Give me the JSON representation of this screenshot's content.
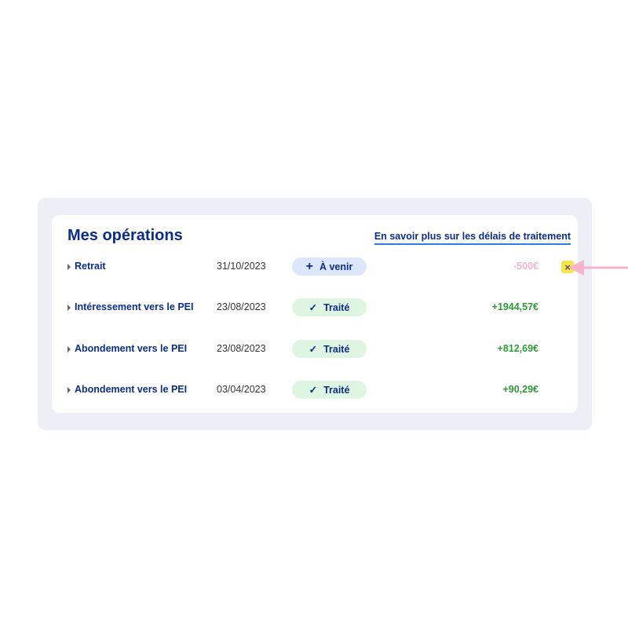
{
  "title": "Mes opérations",
  "info_link": "En savoir plus sur les délais de traitement",
  "colors": {
    "brand": "#0a2d8c",
    "positive": "#2e9a35",
    "pending_amount": "#f6b3cc",
    "arrow": "#f6b3cc",
    "cancel": "#f8e448"
  },
  "operations": [
    {
      "label": "Retrait",
      "date": "31/10/2023",
      "status": "À venir",
      "status_icon": "plus-icon",
      "amount": "-500€"
    },
    {
      "label": "Intéressement vers le PEI",
      "date": "23/08/2023",
      "status": "Traité",
      "status_icon": "check-icon",
      "amount": "+1944,57€"
    },
    {
      "label": "Abondement vers le PEI",
      "date": "23/08/2023",
      "status": "Traité",
      "status_icon": "check-icon",
      "amount": "+812,69€"
    },
    {
      "label": "Abondement vers le PEI",
      "date": "03/04/2023",
      "status": "Traité",
      "status_icon": "check-icon",
      "amount": "+90,29€"
    }
  ],
  "cancel_icon": "×"
}
